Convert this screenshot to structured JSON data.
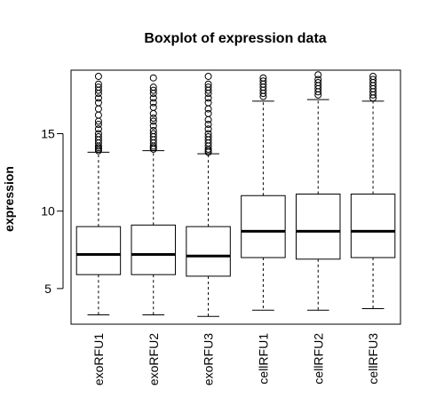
{
  "chart_data": {
    "type": "boxplot",
    "title": "Boxplot of expression data",
    "xlabel": "",
    "ylabel": "expression",
    "ylim": [
      2.7,
      19.1
    ],
    "yticks": [
      5,
      10,
      15
    ],
    "grid": false,
    "legend": "none",
    "categories": [
      "exoRFU1",
      "exoRFU2",
      "exoRFU3",
      "cellRFU1",
      "cellRFU2",
      "cellRFU3"
    ],
    "boxes": [
      {
        "name": "exoRFU1",
        "whisker_low": 3.3,
        "q1": 5.9,
        "median": 7.2,
        "q3": 9.0,
        "whisker_high": 13.8,
        "outliers": [
          13.9,
          14.0,
          14.1,
          14.2,
          14.4,
          14.6,
          14.8,
          15.0,
          15.3,
          15.6,
          15.8,
          16.2,
          16.6,
          17.0,
          17.3,
          17.6,
          17.8,
          18.0,
          18.2,
          18.7
        ]
      },
      {
        "name": "exoRFU2",
        "whisker_low": 3.3,
        "q1": 5.9,
        "median": 7.2,
        "q3": 9.1,
        "whisker_high": 13.9,
        "outliers": [
          14.0,
          14.1,
          14.2,
          14.4,
          14.6,
          14.8,
          15.0,
          15.2,
          15.5,
          15.8,
          16.0,
          16.3,
          16.7,
          17.0,
          17.3,
          17.6,
          17.8,
          18.0,
          18.6
        ]
      },
      {
        "name": "exoRFU3",
        "whisker_low": 3.2,
        "q1": 5.8,
        "median": 7.1,
        "q3": 9.0,
        "whisker_high": 13.7,
        "outliers": [
          13.8,
          13.9,
          14.0,
          14.2,
          14.4,
          14.6,
          14.8,
          15.0,
          15.3,
          15.6,
          15.9,
          16.3,
          16.6,
          17.0,
          17.3,
          17.6,
          17.8,
          18.0,
          18.2,
          18.7
        ]
      },
      {
        "name": "cellRFU1",
        "whisker_low": 3.6,
        "q1": 7.0,
        "median": 8.7,
        "q3": 11.0,
        "whisker_high": 17.1,
        "outliers": [
          17.4,
          17.6,
          17.8,
          18.0,
          18.2,
          18.4,
          18.6
        ]
      },
      {
        "name": "cellRFU2",
        "whisker_low": 3.6,
        "q1": 6.9,
        "median": 8.7,
        "q3": 11.1,
        "whisker_high": 17.2,
        "outliers": [
          17.5,
          17.7,
          17.9,
          18.1,
          18.3,
          18.5,
          18.8
        ]
      },
      {
        "name": "cellRFU3",
        "whisker_low": 3.7,
        "q1": 7.0,
        "median": 8.7,
        "q3": 11.1,
        "whisker_high": 17.1,
        "outliers": [
          17.3,
          17.5,
          17.7,
          17.9,
          18.1,
          18.3,
          18.5,
          18.7
        ]
      }
    ]
  }
}
